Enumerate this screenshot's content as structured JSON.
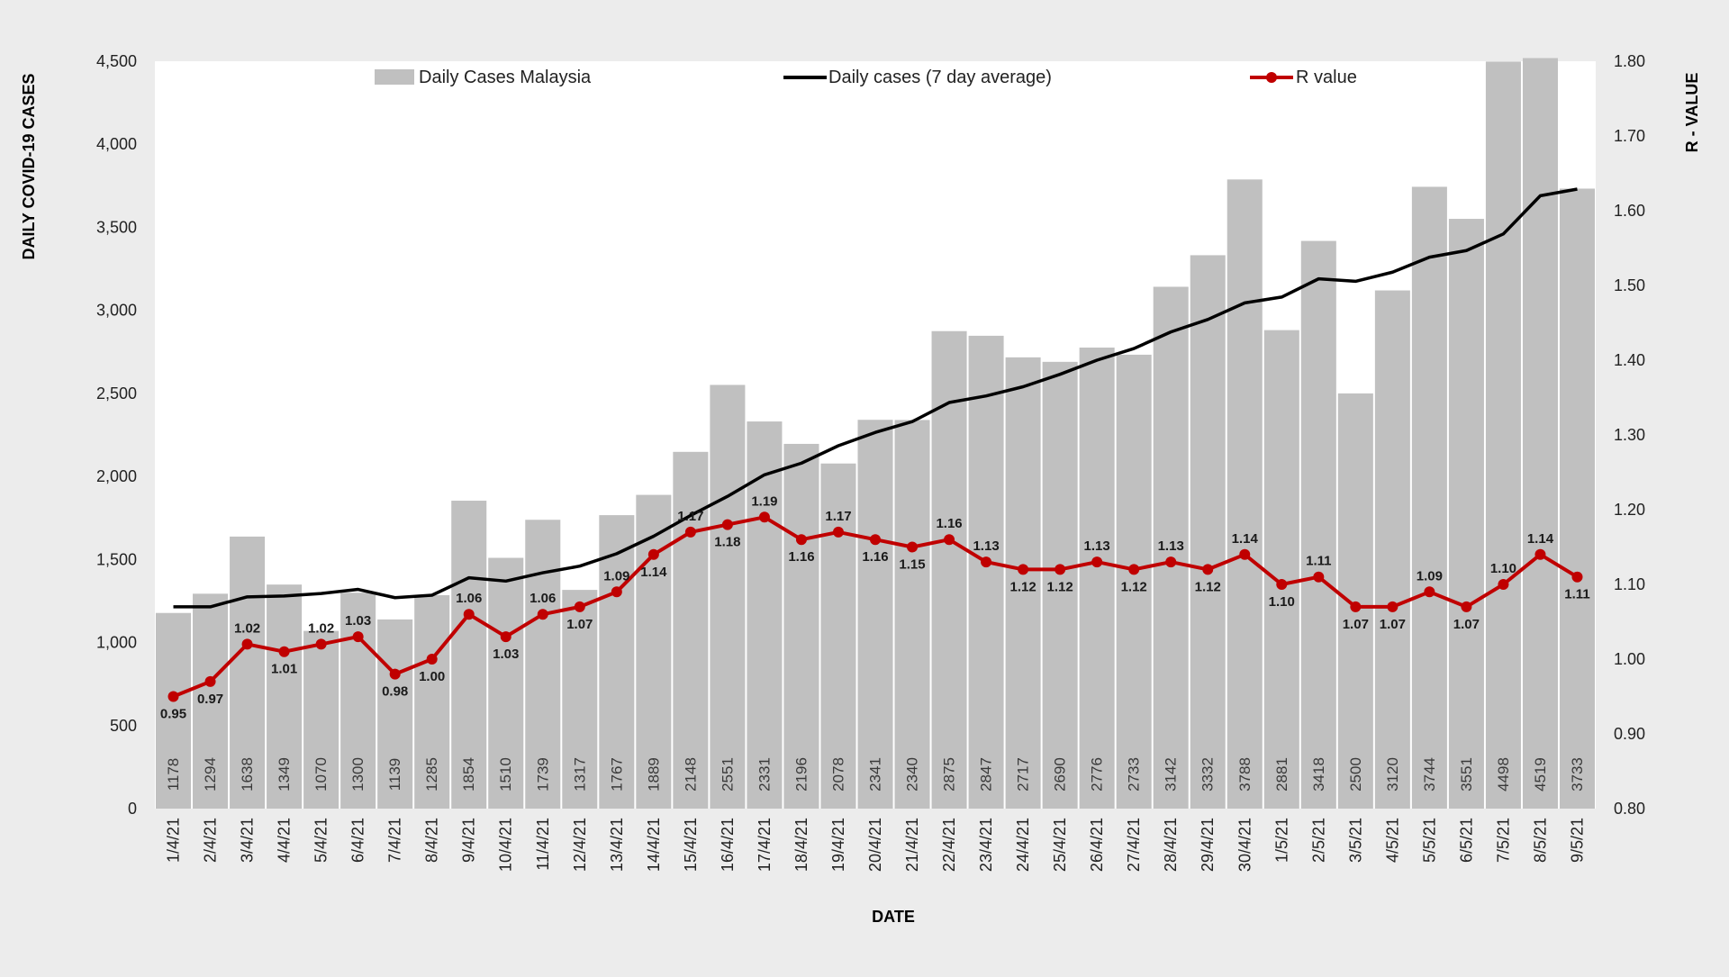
{
  "chart_data": {
    "type": "bar",
    "y_left_label": "DAILY COVID-19 CASES",
    "y_right_label": "R - VALUE",
    "x_label": "DATE",
    "y_left_ticks": [
      "4,500",
      "4,000",
      "3,500",
      "3,000",
      "2,500",
      "2,000",
      "1,500",
      "1,000",
      "500",
      "0"
    ],
    "y_right_ticks": [
      "1.80",
      "1.70",
      "1.60",
      "1.50",
      "1.40",
      "1.30",
      "1.20",
      "1.10",
      "1.00",
      "0.90",
      "0.80"
    ],
    "y_left_lim": [
      0,
      4500
    ],
    "y_right_lim": [
      0.8,
      1.8
    ],
    "grid": false,
    "legend_position": "top",
    "categories": [
      "1/4/21",
      "2/4/21",
      "3/4/21",
      "4/4/21",
      "5/4/21",
      "6/4/21",
      "7/4/21",
      "8/4/21",
      "9/4/21",
      "10/4/21",
      "11/4/21",
      "12/4/21",
      "13/4/21",
      "14/4/21",
      "15/4/21",
      "16/4/21",
      "17/4/21",
      "18/4/21",
      "19/4/21",
      "20/4/21",
      "21/4/21",
      "22/4/21",
      "23/4/21",
      "24/4/21",
      "25/4/21",
      "26/4/21",
      "27/4/21",
      "28/4/21",
      "29/4/21",
      "30/4/21",
      "1/5/21",
      "2/5/21",
      "3/5/21",
      "4/5/21",
      "5/5/21",
      "6/5/21",
      "7/5/21",
      "8/5/21",
      "9/5/21"
    ],
    "series": [
      {
        "name": "Daily Cases Malaysia",
        "type": "bar",
        "axis": "left",
        "color": "#c0c0c0",
        "values": [
          1178,
          1294,
          1638,
          1349,
          1070,
          1300,
          1139,
          1285,
          1854,
          1510,
          1739,
          1317,
          1767,
          1889,
          2148,
          2551,
          2331,
          2196,
          2078,
          2341,
          2340,
          2875,
          2847,
          2717,
          2690,
          2776,
          2733,
          3142,
          3332,
          3788,
          2881,
          3418,
          2500,
          3120,
          3744,
          3551,
          4498,
          4519,
          3733
        ]
      },
      {
        "name": "Daily cases (7 day average)",
        "type": "line",
        "axis": "left",
        "color": "#000000",
        "values": [
          1215,
          1215,
          1275,
          1280,
          1295,
          1320,
          1270,
          1285,
          1390,
          1370,
          1420,
          1460,
          1535,
          1640,
          1765,
          1880,
          2010,
          2080,
          2185,
          2265,
          2330,
          2445,
          2485,
          2540,
          2615,
          2700,
          2770,
          2870,
          2945,
          3045,
          3080,
          3190,
          3175,
          3230,
          3320,
          3360,
          3460,
          3690,
          3730
        ]
      },
      {
        "name": "R value",
        "type": "line",
        "axis": "right",
        "color": "#c00000",
        "values": [
          0.95,
          0.97,
          1.02,
          1.01,
          1.02,
          1.03,
          0.98,
          1.0,
          1.06,
          1.03,
          1.06,
          1.07,
          1.09,
          1.14,
          1.17,
          1.18,
          1.19,
          1.16,
          1.17,
          1.16,
          1.15,
          1.16,
          1.13,
          1.12,
          1.12,
          1.13,
          1.12,
          1.13,
          1.12,
          1.14,
          1.1,
          1.11,
          1.07,
          1.07,
          1.09,
          1.07,
          1.1,
          1.14,
          1.11
        ]
      }
    ]
  }
}
